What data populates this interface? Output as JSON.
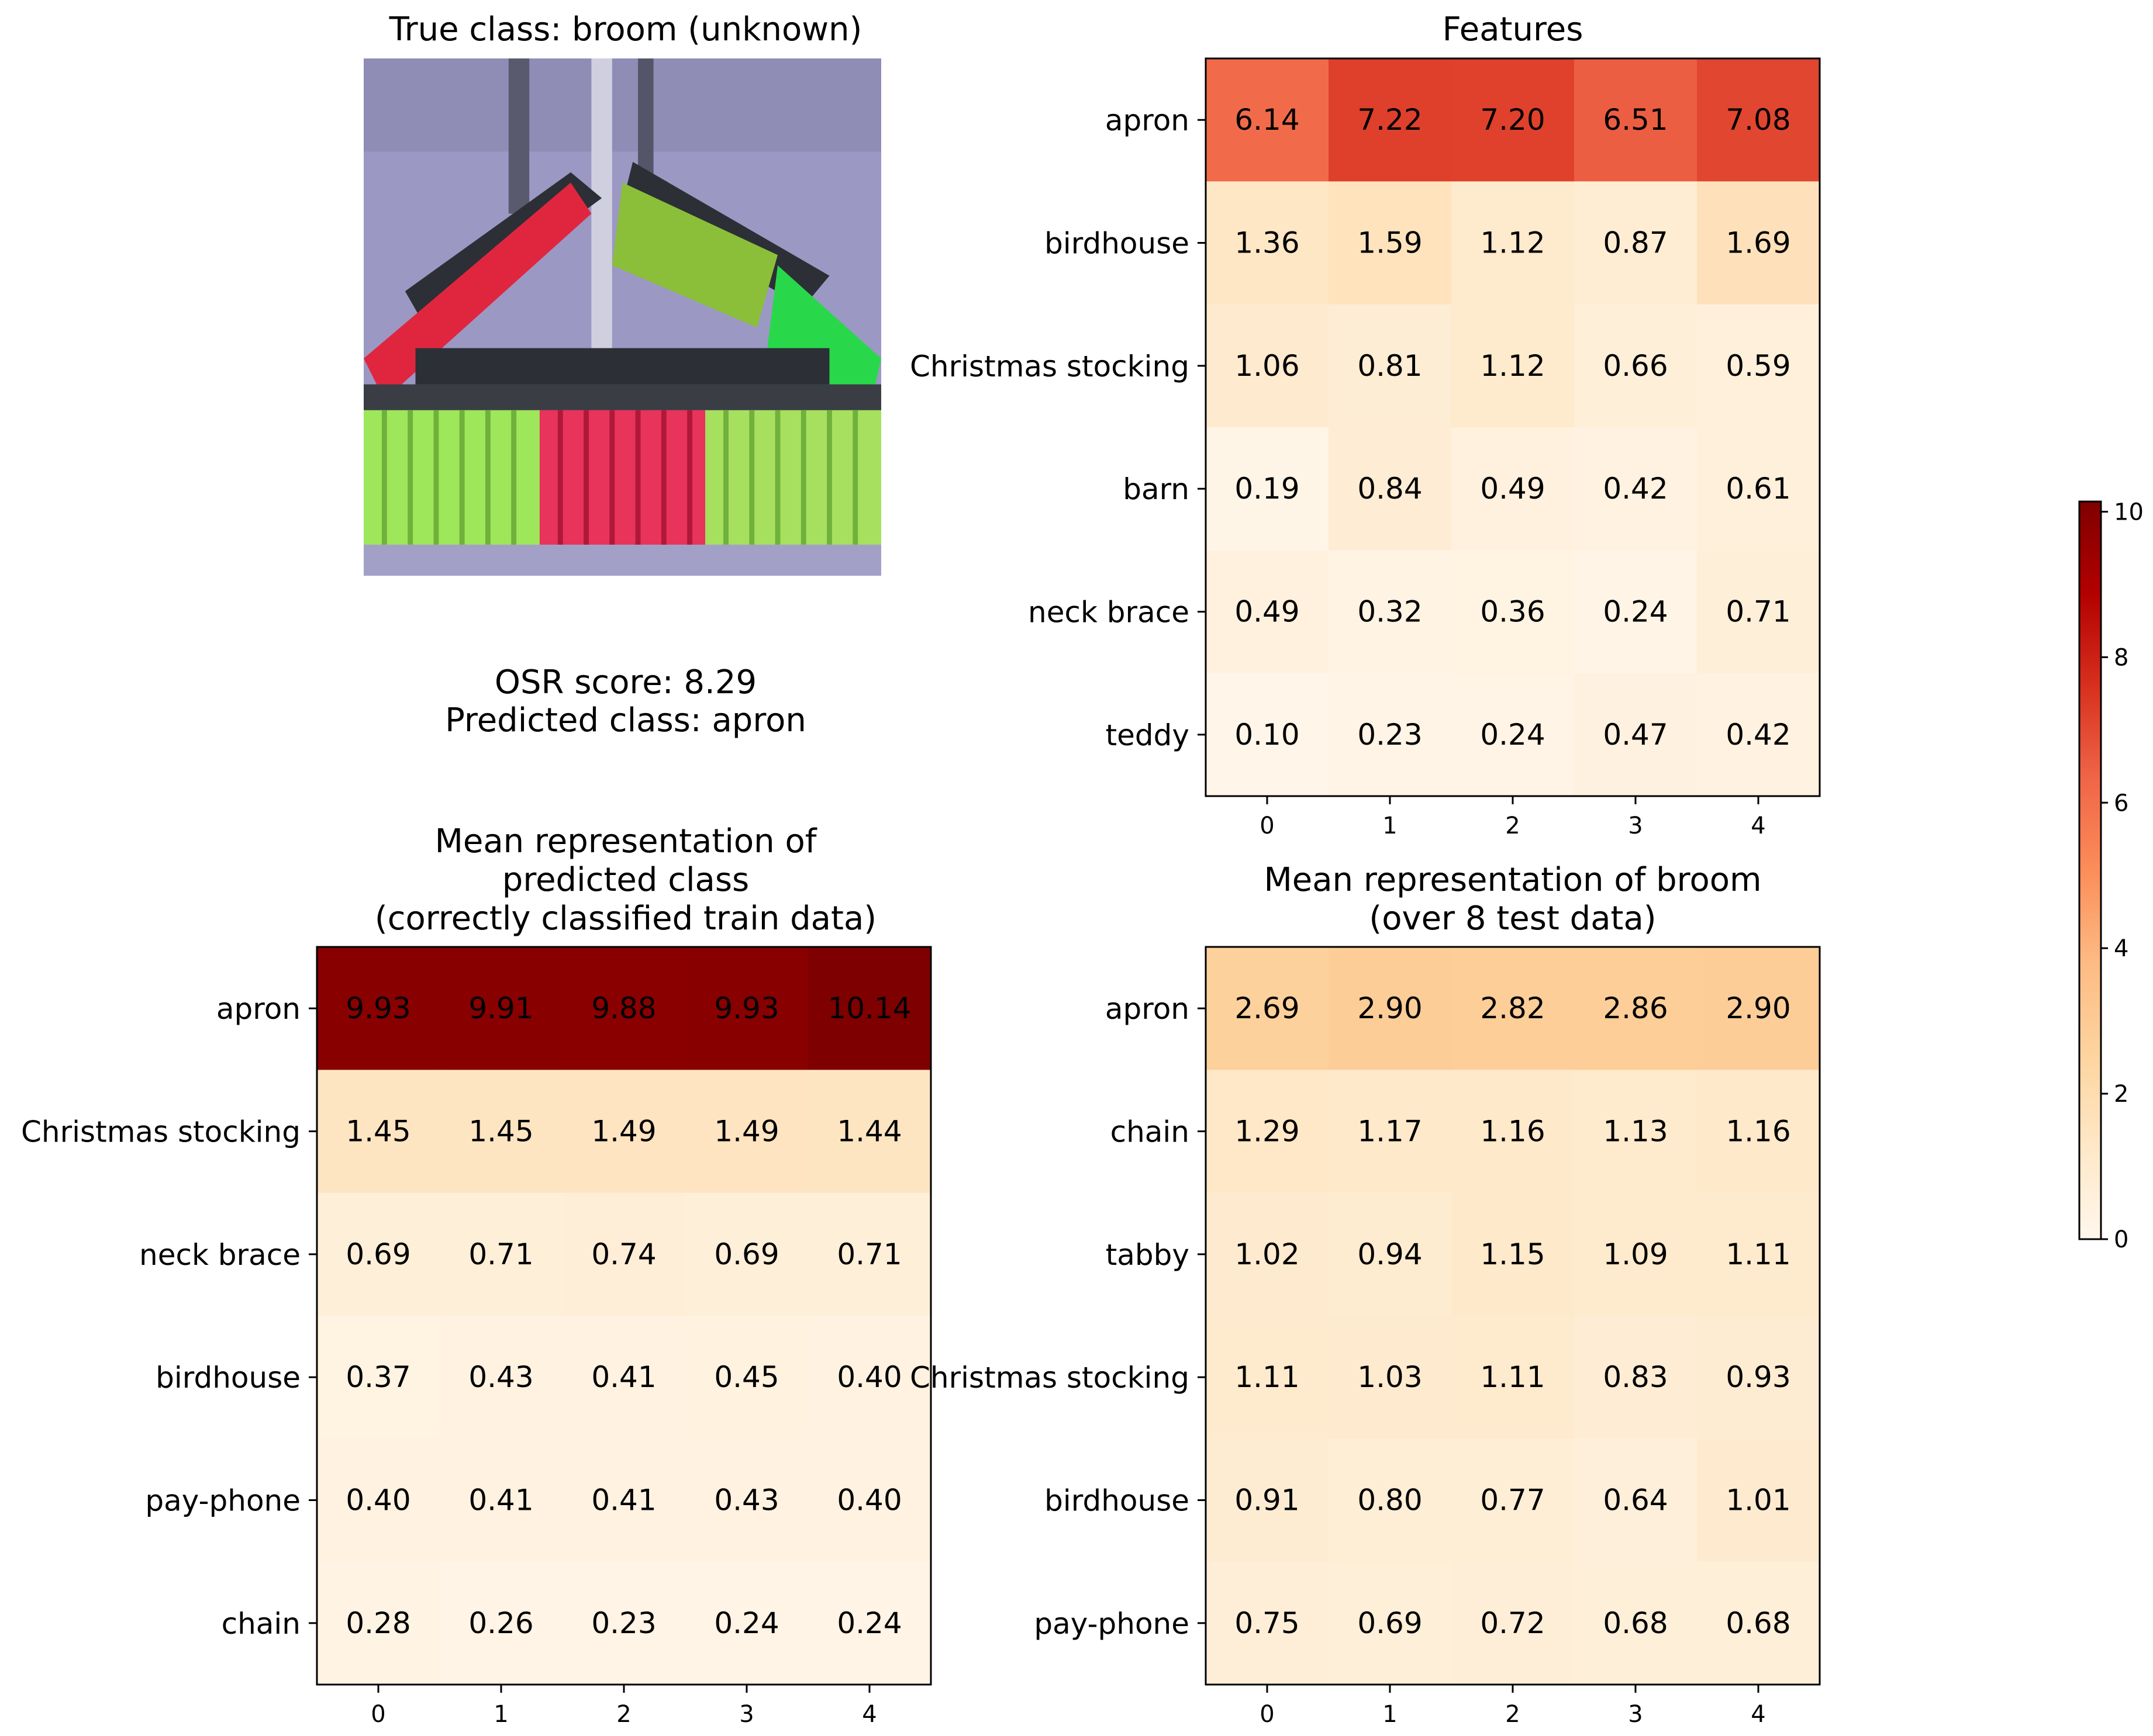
{
  "image_panel": {
    "title": "True class: broom (unknown)",
    "icon": "broom-thumbnail"
  },
  "info": {
    "osr_score": "OSR score: 8.29",
    "predicted": "Predicted class: apron"
  },
  "colorbar": {
    "ticks": [
      "0",
      "2",
      "4",
      "6",
      "8",
      "10"
    ],
    "min": 0,
    "max": 10.14,
    "colormap": "OrRd"
  },
  "chart_data": [
    {
      "type": "heatmap",
      "title": "Features",
      "rows": [
        "apron",
        "birdhouse",
        "Christmas stocking",
        "barn",
        "neck brace",
        "teddy"
      ],
      "columns": [
        "0",
        "1",
        "2",
        "3",
        "4"
      ],
      "values": [
        [
          6.14,
          7.22,
          7.2,
          6.51,
          7.08
        ],
        [
          1.36,
          1.59,
          1.12,
          0.87,
          1.69
        ],
        [
          1.06,
          0.81,
          1.12,
          0.66,
          0.59
        ],
        [
          0.19,
          0.84,
          0.49,
          0.42,
          0.61
        ],
        [
          0.49,
          0.32,
          0.36,
          0.24,
          0.71
        ],
        [
          0.1,
          0.23,
          0.24,
          0.47,
          0.42
        ]
      ],
      "labels": [
        [
          "6.14",
          "7.22",
          "7.20",
          "6.51",
          "7.08"
        ],
        [
          "1.36",
          "1.59",
          "1.12",
          "0.87",
          "1.69"
        ],
        [
          "1.06",
          "0.81",
          "1.12",
          "0.66",
          "0.59"
        ],
        [
          "0.19",
          "0.84",
          "0.49",
          "0.42",
          "0.61"
        ],
        [
          "0.49",
          "0.32",
          "0.36",
          "0.24",
          "0.71"
        ],
        [
          "0.10",
          "0.23",
          "0.24",
          "0.47",
          "0.42"
        ]
      ]
    },
    {
      "type": "heatmap",
      "title": "Mean representation of\npredicted class\n(correctly classified train data)",
      "rows": [
        "apron",
        "Christmas stocking",
        "neck brace",
        "birdhouse",
        "pay-phone",
        "chain"
      ],
      "columns": [
        "0",
        "1",
        "2",
        "3",
        "4"
      ],
      "values": [
        [
          9.93,
          9.91,
          9.88,
          9.93,
          10.14
        ],
        [
          1.45,
          1.45,
          1.49,
          1.49,
          1.44
        ],
        [
          0.69,
          0.71,
          0.74,
          0.69,
          0.71
        ],
        [
          0.37,
          0.43,
          0.41,
          0.45,
          0.4
        ],
        [
          0.4,
          0.41,
          0.41,
          0.43,
          0.4
        ],
        [
          0.28,
          0.26,
          0.23,
          0.24,
          0.24
        ]
      ],
      "labels": [
        [
          "9.93",
          "9.91",
          "9.88",
          "9.93",
          "10.14"
        ],
        [
          "1.45",
          "1.45",
          "1.49",
          "1.49",
          "1.44"
        ],
        [
          "0.69",
          "0.71",
          "0.74",
          "0.69",
          "0.71"
        ],
        [
          "0.37",
          "0.43",
          "0.41",
          "0.45",
          "0.40"
        ],
        [
          "0.40",
          "0.41",
          "0.41",
          "0.43",
          "0.40"
        ],
        [
          "0.28",
          "0.26",
          "0.23",
          "0.24",
          "0.24"
        ]
      ]
    },
    {
      "type": "heatmap",
      "title": "Mean representation of broom\n(over 8 test data)",
      "rows": [
        "apron",
        "chain",
        "tabby",
        "Christmas stocking",
        "birdhouse",
        "pay-phone"
      ],
      "columns": [
        "0",
        "1",
        "2",
        "3",
        "4"
      ],
      "values": [
        [
          2.69,
          2.9,
          2.82,
          2.86,
          2.9
        ],
        [
          1.29,
          1.17,
          1.16,
          1.13,
          1.16
        ],
        [
          1.02,
          0.94,
          1.15,
          1.09,
          1.11
        ],
        [
          1.11,
          1.03,
          1.11,
          0.83,
          0.93
        ],
        [
          0.91,
          0.8,
          0.77,
          0.64,
          1.01
        ],
        [
          0.75,
          0.69,
          0.72,
          0.68,
          0.68
        ]
      ],
      "labels": [
        [
          "2.69",
          "2.90",
          "2.82",
          "2.86",
          "2.90"
        ],
        [
          "1.29",
          "1.17",
          "1.16",
          "1.13",
          "1.16"
        ],
        [
          "1.02",
          "0.94",
          "1.15",
          "1.09",
          "1.11"
        ],
        [
          "1.11",
          "1.03",
          "1.11",
          "0.83",
          "0.93"
        ],
        [
          "0.91",
          "0.80",
          "0.77",
          "0.64",
          "1.01"
        ],
        [
          "0.75",
          "0.69",
          "0.72",
          "0.68",
          "0.68"
        ]
      ]
    }
  ]
}
